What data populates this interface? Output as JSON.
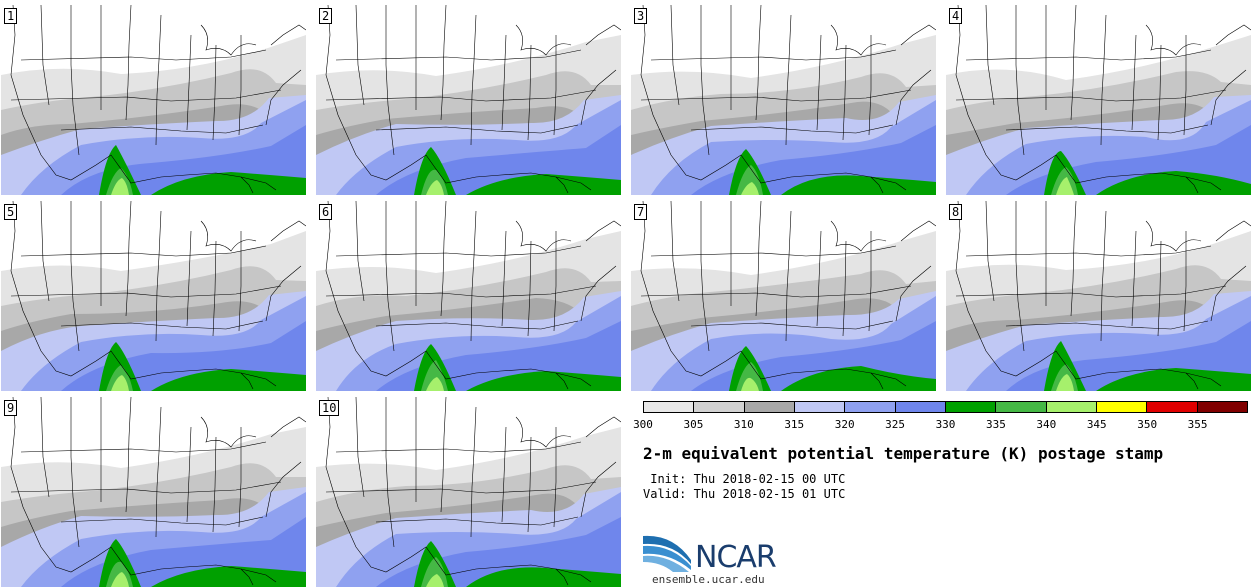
{
  "title": "2-m equivalent potential temperature (K) postage stamp",
  "init": " Init: Thu 2018-02-15 00 UTC",
  "valid": "Valid: Thu 2018-02-15 01 UTC",
  "logo_text": "NCAR",
  "site": "ensemble.ucar.edu",
  "members": [
    {
      "label": "1"
    },
    {
      "label": "2"
    },
    {
      "label": "3"
    },
    {
      "label": "4"
    },
    {
      "label": "5"
    },
    {
      "label": "6"
    },
    {
      "label": "7"
    },
    {
      "label": "8"
    },
    {
      "label": "9"
    },
    {
      "label": "10"
    }
  ],
  "colorbar": {
    "ticks": [
      "300",
      "305",
      "310",
      "315",
      "320",
      "325",
      "330",
      "335",
      "340",
      "345",
      "350",
      "355"
    ],
    "colors": [
      "#e8e8e8",
      "#d2d2d2",
      "#a8a8a8",
      "#c0c8f4",
      "#8fa1f0",
      "#6f86ec",
      "#00a000",
      "#45b845",
      "#a6f06c",
      "#ffff00",
      "#e00000",
      "#800000"
    ]
  }
}
